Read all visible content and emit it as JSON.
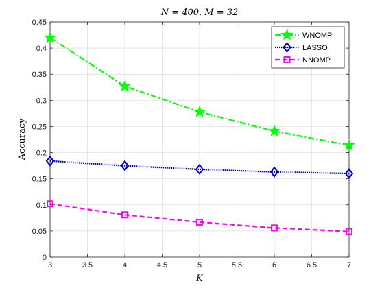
{
  "chart_data": {
    "type": "line",
    "title": "N = 400, M = 32",
    "xlabel": "K",
    "ylabel": "Accuracy",
    "xlim": [
      3,
      7
    ],
    "ylim": [
      0,
      0.45
    ],
    "xticks": [
      "3",
      "3.5",
      "4",
      "4.5",
      "5",
      "5.5",
      "6",
      "6.5",
      "7"
    ],
    "yticks": [
      "0",
      "0.05",
      "0.1",
      "0.15",
      "0.2",
      "0.25",
      "0.3",
      "0.35",
      "0.4",
      "0.45"
    ],
    "x": [
      3,
      4,
      5,
      6,
      7
    ],
    "grid": true,
    "legend_position": "top-right",
    "series": [
      {
        "name": "WNOMP",
        "values": [
          0.42,
          0.327,
          0.278,
          0.241,
          0.214
        ],
        "color": "#00ff00",
        "line_style": "dash-dot",
        "marker": "star"
      },
      {
        "name": "LASSO",
        "values": [
          0.184,
          0.175,
          0.168,
          0.163,
          0.16
        ],
        "color": "#0000cc",
        "line_style": "dotted",
        "marker": "diamond"
      },
      {
        "name": "NNOMP",
        "values": [
          0.102,
          0.081,
          0.067,
          0.056,
          0.049
        ],
        "color": "#ff00ff",
        "line_style": "dashed",
        "marker": "square"
      }
    ]
  }
}
